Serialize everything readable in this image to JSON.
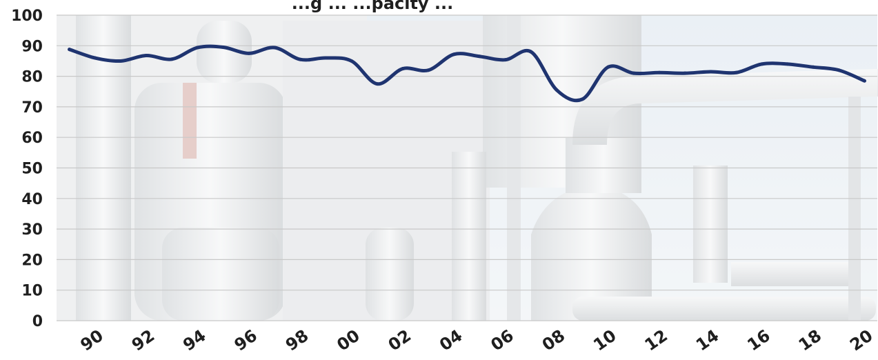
{
  "chart_data": {
    "type": "line",
    "title": "...g ... ...pacity ...",
    "xlabel": "",
    "ylabel": "",
    "ylim": [
      0,
      100
    ],
    "yticks": [
      0,
      10,
      20,
      30,
      40,
      50,
      60,
      70,
      80,
      90,
      100
    ],
    "xtick_labels": [
      "90",
      "92",
      "94",
      "96",
      "98",
      "00",
      "02",
      "04",
      "06",
      "08",
      "10",
      "12",
      "14",
      "16",
      "18",
      "20"
    ],
    "grid": "horizontal",
    "background": "industrial refinery photo (faded)",
    "series": [
      {
        "name": "",
        "color": "#1f3470",
        "x": [
          1989,
          1990,
          1991,
          1992,
          1993,
          1994,
          1995,
          1996,
          1997,
          1998,
          1999,
          2000,
          2001,
          2002,
          2003,
          2004,
          2005,
          2006,
          2007,
          2008,
          2009,
          2010,
          2011,
          2012,
          2013,
          2014,
          2015,
          2016,
          2017,
          2018,
          2019,
          2020
        ],
        "values": [
          88.8,
          86,
          85,
          86.8,
          85.6,
          89.4,
          89.5,
          87.5,
          89.4,
          85.5,
          86,
          85,
          77.5,
          82.5,
          82,
          87.2,
          86.5,
          85.4,
          88,
          75.5,
          72.5,
          83,
          81,
          81.2,
          81,
          81.5,
          81.2,
          84,
          84,
          83,
          82,
          78.5
        ]
      }
    ]
  },
  "colors": {
    "line": "#1f3470",
    "grid": "#c8c8c8",
    "text": "#1f1f1f"
  }
}
